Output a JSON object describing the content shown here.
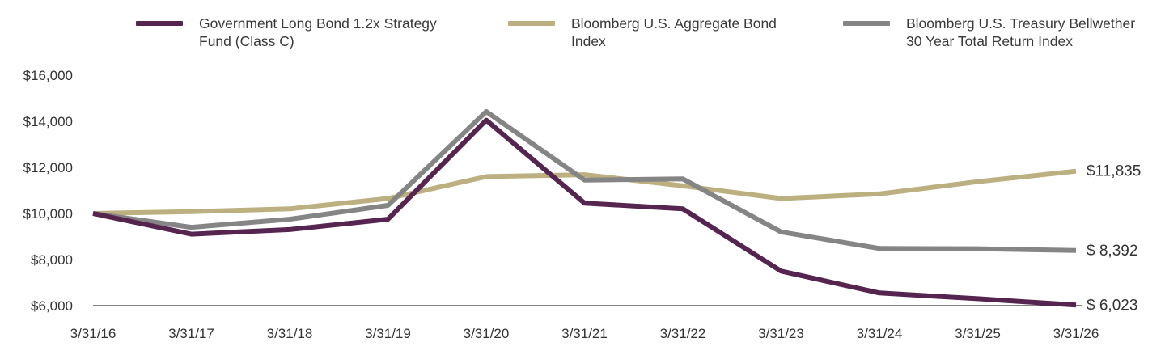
{
  "chart_data": {
    "type": "line",
    "title": "",
    "xlabel": "",
    "ylabel": "",
    "x": [
      "3/31/16",
      "3/31/17",
      "3/31/18",
      "3/31/19",
      "3/31/20",
      "3/31/21",
      "3/31/22",
      "3/31/23",
      "3/31/24",
      "3/31/25",
      "3/31/26"
    ],
    "yticks": [
      "$6,000",
      "$8,000",
      "$10,000",
      "$12,000",
      "$14,000",
      "$16,000"
    ],
    "ylim": [
      6000,
      16000
    ],
    "grid": false,
    "legend_position": "top",
    "series": [
      {
        "name_lines": [
          "Government Long Bond 1.2x Strategy",
          "Fund (Class C)"
        ],
        "color": "#55254f",
        "values": [
          10000,
          9100,
          9300,
          9750,
          14050,
          10450,
          10200,
          7500,
          6550,
          6300,
          6023
        ],
        "end_label": "$  6,023"
      },
      {
        "name_lines": [
          "Bloomberg U.S. Aggregate Bond",
          "Index"
        ],
        "color": "#bcaf80",
        "values": [
          10000,
          10080,
          10200,
          10650,
          11600,
          11680,
          11200,
          10650,
          10850,
          11380,
          11835
        ],
        "end_label": "$11,835"
      },
      {
        "name_lines": [
          "Bloomberg U.S. Treasury Bellwether",
          "30 Year Total Return Index"
        ],
        "color": "#858585",
        "values": [
          10000,
          9400,
          9750,
          10350,
          14420,
          11450,
          11500,
          9200,
          8480,
          8470,
          8392
        ],
        "end_label": "$  8,392"
      }
    ]
  }
}
